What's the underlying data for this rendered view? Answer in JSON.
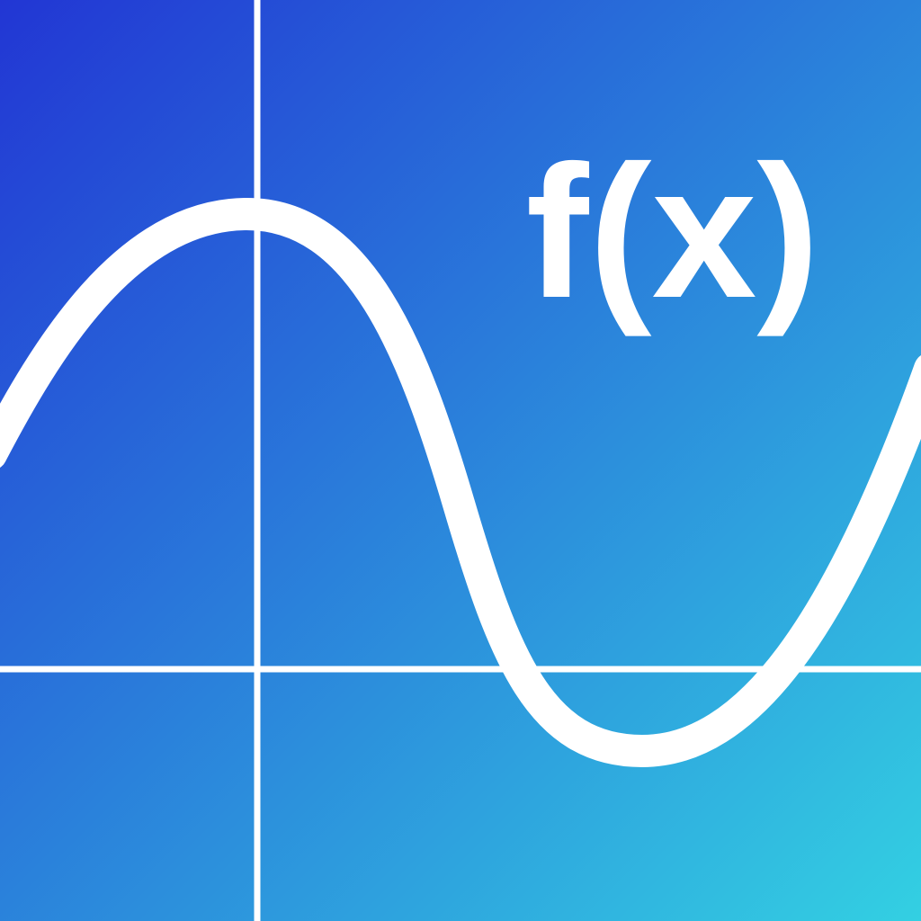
{
  "icon": {
    "label": "f(x)",
    "colors": {
      "gradient_start": "#2236d4",
      "gradient_end": "#33d0e2",
      "foreground": "#ffffff"
    }
  }
}
